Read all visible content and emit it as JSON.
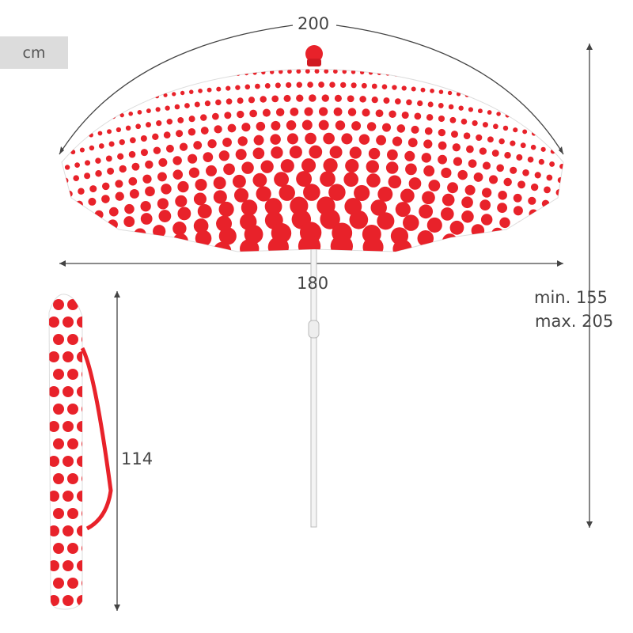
{
  "unit": "cm",
  "dimensions": {
    "canopy_arc": "200",
    "canopy_width": "180",
    "height_min": "min. 155",
    "height_max": "max. 205",
    "bag_length": "114"
  },
  "colors": {
    "dots": "#e8222a",
    "fabric": "#ffffff",
    "dimension_lines": "#444444",
    "badge": "#dcdcdc"
  }
}
